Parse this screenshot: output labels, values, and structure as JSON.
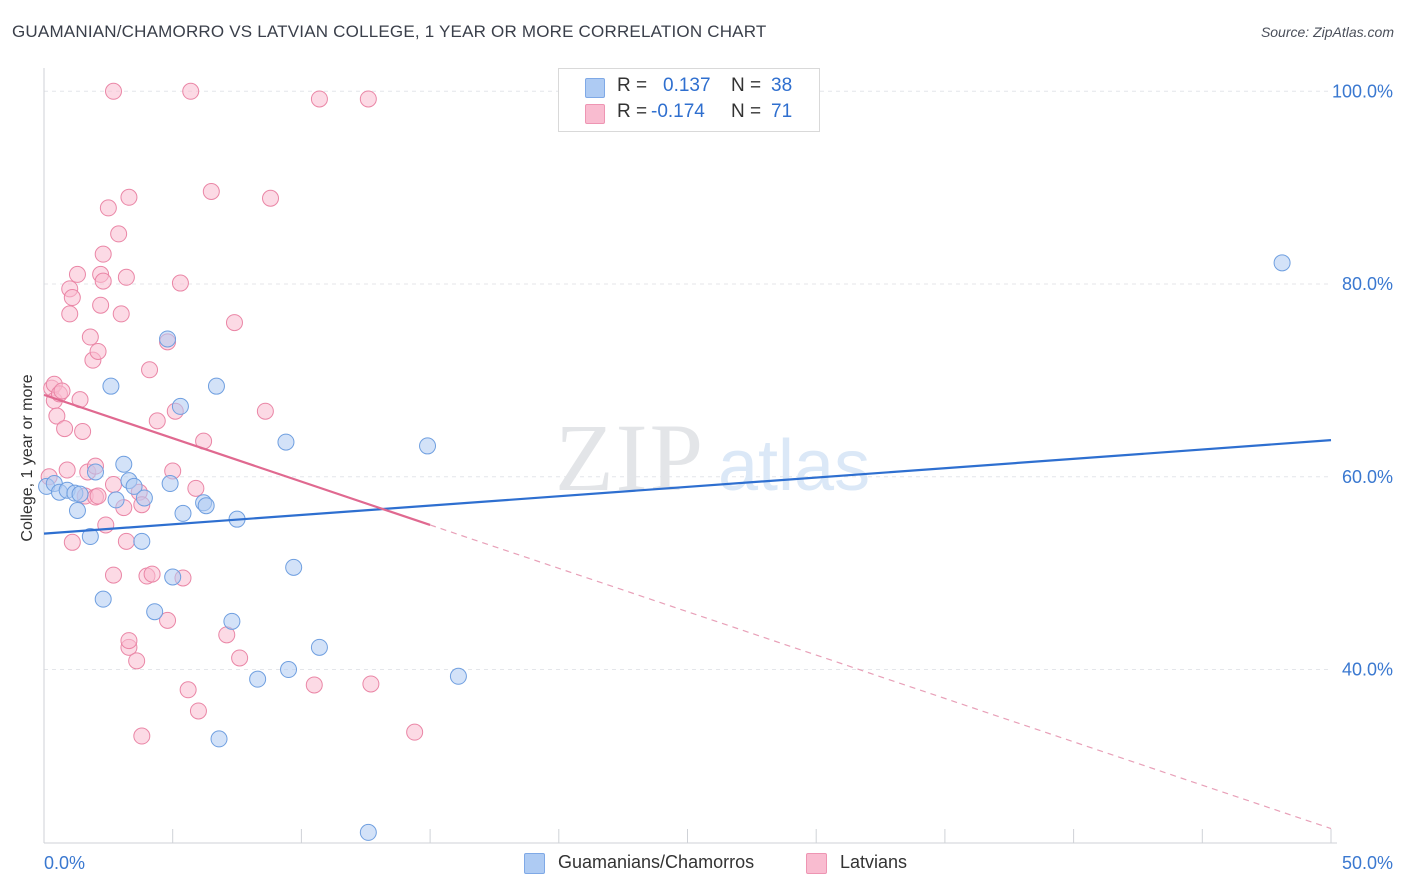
{
  "title": "GUAMANIAN/CHAMORRO VS LATVIAN COLLEGE, 1 YEAR OR MORE CORRELATION CHART",
  "source": "Source: ZipAtlas.com",
  "watermark": {
    "zip": "ZIP",
    "atlas": "atlas"
  },
  "legend": {
    "rows": [
      {
        "r_label": "R =",
        "r_value": "0.137",
        "n_label": "N =",
        "n_value": "38",
        "color": "#aecbf3"
      },
      {
        "r_label": "R =",
        "r_value": "-0.174",
        "n_label": "N =",
        "n_value": "71",
        "color": "#f9bcd0"
      }
    ]
  },
  "bottom_legend": [
    {
      "label": "Guamanians/Chamorros",
      "color": "#aecbf3"
    },
    {
      "label": "Latvians",
      "color": "#f9bcd0"
    }
  ],
  "chart_data": {
    "type": "scatter",
    "title": "GUAMANIAN/CHAMORRO VS LATVIAN COLLEGE, 1 YEAR OR MORE CORRELATION CHART",
    "xlabel": "",
    "ylabel": "College, 1 year or more",
    "xlim": [
      0,
      50
    ],
    "ylim": [
      22,
      102
    ],
    "x_tick_labels": [
      "0.0%",
      "50.0%"
    ],
    "y_ticks": [
      40,
      60,
      80,
      100
    ],
    "y_tick_labels": [
      "40.0%",
      "60.0%",
      "80.0%",
      "100.0%"
    ],
    "grid": true,
    "series": [
      {
        "name": "Guamanians/Chamorros",
        "color": "#6f9fe0",
        "fill": "#aecbf3",
        "points": [
          [
            0.1,
            59.0
          ],
          [
            0.4,
            59.3
          ],
          [
            0.6,
            58.4
          ],
          [
            0.9,
            58.6
          ],
          [
            1.2,
            58.3
          ],
          [
            1.4,
            58.2
          ],
          [
            1.3,
            56.5
          ],
          [
            1.8,
            53.8
          ],
          [
            2.0,
            60.5
          ],
          [
            2.3,
            47.3
          ],
          [
            2.6,
            69.4
          ],
          [
            2.8,
            57.6
          ],
          [
            3.1,
            61.3
          ],
          [
            3.3,
            59.6
          ],
          [
            3.5,
            59.0
          ],
          [
            3.8,
            53.3
          ],
          [
            3.9,
            57.8
          ],
          [
            4.3,
            46.0
          ],
          [
            4.8,
            74.3
          ],
          [
            4.9,
            59.3
          ],
          [
            5.0,
            49.6
          ],
          [
            5.3,
            67.3
          ],
          [
            5.4,
            56.2
          ],
          [
            6.2,
            57.3
          ],
          [
            6.3,
            57.0
          ],
          [
            6.7,
            69.4
          ],
          [
            6.8,
            32.8
          ],
          [
            7.3,
            45.0
          ],
          [
            7.5,
            55.6
          ],
          [
            8.3,
            39.0
          ],
          [
            9.4,
            63.6
          ],
          [
            9.5,
            40.0
          ],
          [
            9.7,
            50.6
          ],
          [
            10.7,
            42.3
          ],
          [
            12.6,
            23.1
          ],
          [
            14.9,
            63.2
          ],
          [
            16.1,
            39.3
          ],
          [
            48.1,
            82.2
          ]
        ],
        "trend": {
          "x": [
            0,
            50
          ],
          "y": [
            54.1,
            63.8
          ]
        }
      },
      {
        "name": "Latvians",
        "color": "#ea86a6",
        "fill": "#f9bcd0",
        "points": [
          [
            0.2,
            60.0
          ],
          [
            0.3,
            69.2
          ],
          [
            0.4,
            69.6
          ],
          [
            0.4,
            67.9
          ],
          [
            0.5,
            66.3
          ],
          [
            0.6,
            68.6
          ],
          [
            0.7,
            68.9
          ],
          [
            0.8,
            65.0
          ],
          [
            0.9,
            60.7
          ],
          [
            1.0,
            76.9
          ],
          [
            1.0,
            79.5
          ],
          [
            1.1,
            53.2
          ],
          [
            1.1,
            78.6
          ],
          [
            1.3,
            81.0
          ],
          [
            1.4,
            68.0
          ],
          [
            1.5,
            64.7
          ],
          [
            1.6,
            58.0
          ],
          [
            1.7,
            60.5
          ],
          [
            1.8,
            74.5
          ],
          [
            1.9,
            72.1
          ],
          [
            2.0,
            61.1
          ],
          [
            2.0,
            57.9
          ],
          [
            2.1,
            58.0
          ],
          [
            2.2,
            81.0
          ],
          [
            2.1,
            73.0
          ],
          [
            2.2,
            77.8
          ],
          [
            2.3,
            83.1
          ],
          [
            2.3,
            80.3
          ],
          [
            2.4,
            55.0
          ],
          [
            2.5,
            87.9
          ],
          [
            2.7,
            59.2
          ],
          [
            2.7,
            49.8
          ],
          [
            2.7,
            100.0
          ],
          [
            2.9,
            85.2
          ],
          [
            3.0,
            76.9
          ],
          [
            3.1,
            56.8
          ],
          [
            3.2,
            80.7
          ],
          [
            3.3,
            89.0
          ],
          [
            3.2,
            53.3
          ],
          [
            3.3,
            42.3
          ],
          [
            3.3,
            43.0
          ],
          [
            3.6,
            40.9
          ],
          [
            3.7,
            58.4
          ],
          [
            3.8,
            57.1
          ],
          [
            3.8,
            33.1
          ],
          [
            4.0,
            49.7
          ],
          [
            4.1,
            71.1
          ],
          [
            4.2,
            49.9
          ],
          [
            4.4,
            65.8
          ],
          [
            4.8,
            74.0
          ],
          [
            4.8,
            45.1
          ],
          [
            5.0,
            60.6
          ],
          [
            5.1,
            66.8
          ],
          [
            5.3,
            80.1
          ],
          [
            5.4,
            49.5
          ],
          [
            5.6,
            37.9
          ],
          [
            5.7,
            100.0
          ],
          [
            5.9,
            58.8
          ],
          [
            6.0,
            35.7
          ],
          [
            6.2,
            63.7
          ],
          [
            6.5,
            89.6
          ],
          [
            7.1,
            43.6
          ],
          [
            7.4,
            76.0
          ],
          [
            7.6,
            41.2
          ],
          [
            8.6,
            66.8
          ],
          [
            8.8,
            88.9
          ],
          [
            10.7,
            99.2
          ],
          [
            10.5,
            38.4
          ],
          [
            12.6,
            99.2
          ],
          [
            12.7,
            38.5
          ],
          [
            14.4,
            33.5
          ]
        ],
        "trend": {
          "x": [
            0,
            15
          ],
          "y": [
            68.5,
            55.0
          ]
        },
        "trend_dashed": {
          "x": [
            15,
            50
          ],
          "y": [
            55.0,
            23.5
          ]
        }
      }
    ]
  }
}
